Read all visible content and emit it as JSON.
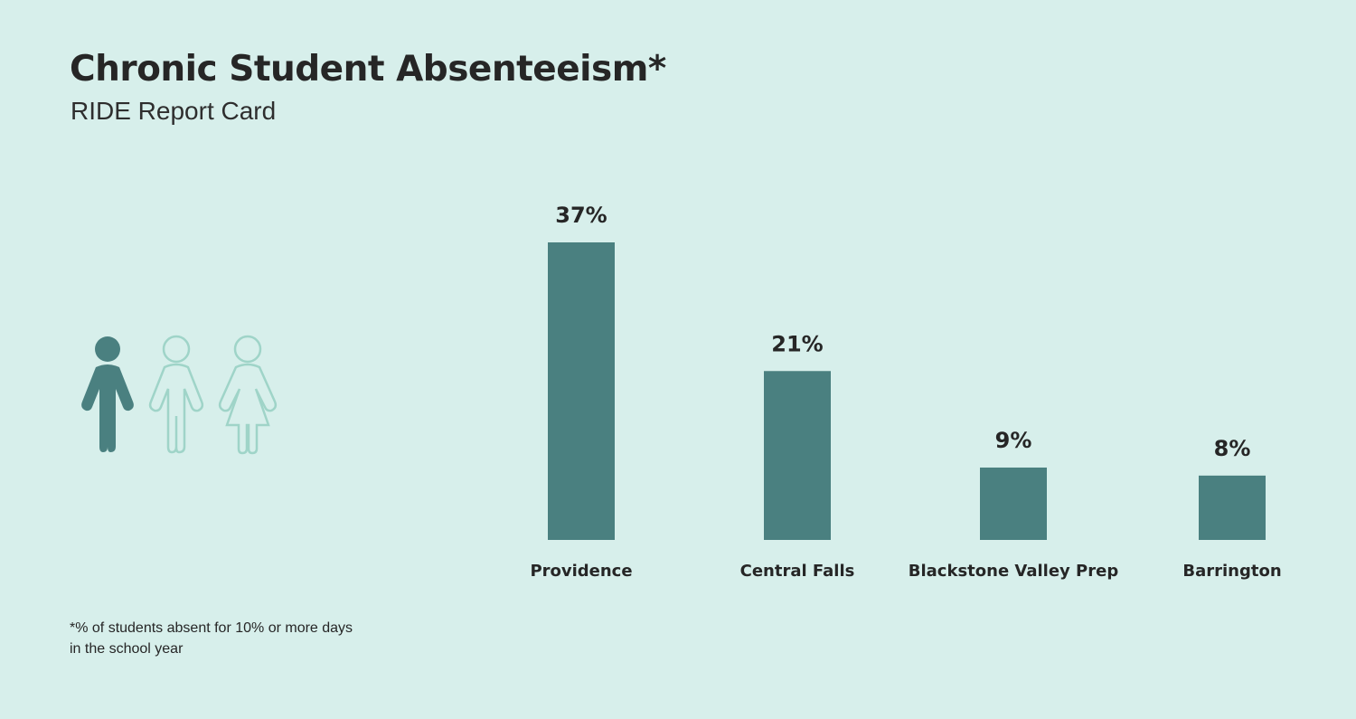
{
  "header": {
    "title": "Chronic Student Absenteeism*",
    "subtitle": "RIDE Report Card"
  },
  "footnote": {
    "line1": "*% of students absent for 10% or more days",
    "line2": "in the school year"
  },
  "icons": {
    "figures": [
      "person-filled-icon",
      "person-outline-icon",
      "person-dress-outline-icon"
    ],
    "filled_color": "#4a8080",
    "outline_color": "#9fd4c8"
  },
  "colors": {
    "background": "#d7efeb",
    "bar": "#4a8080",
    "text": "#262626"
  },
  "chart_data": {
    "type": "bar",
    "title": "Chronic Student Absenteeism*",
    "subtitle": "RIDE Report Card",
    "categories": [
      "Providence",
      "Central Falls",
      "Blackstone Valley Prep",
      "Barrington"
    ],
    "values": [
      37,
      21,
      9,
      8
    ],
    "value_labels": [
      "37%",
      "21%",
      "9%",
      "8%"
    ],
    "unit": "%",
    "xlabel": "",
    "ylabel": "",
    "ylim": [
      0,
      37
    ],
    "grid": false,
    "legend": "none"
  }
}
